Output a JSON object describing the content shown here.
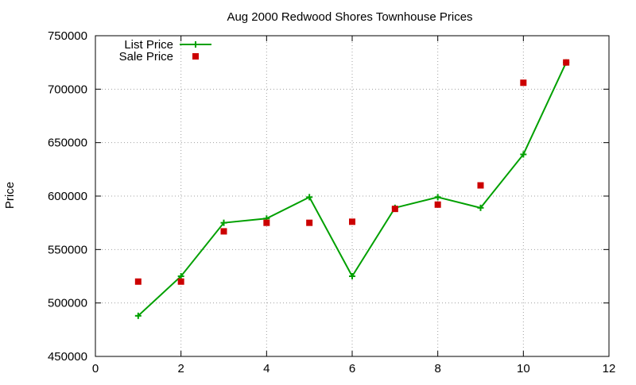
{
  "chart_data": {
    "type": "line",
    "title": "Aug 2000 Redwood Shores Townhouse Prices",
    "xlabel": "",
    "ylabel": "Price",
    "xlim": [
      0,
      12
    ],
    "ylim": [
      450000,
      750000
    ],
    "x_ticks": [
      0,
      2,
      4,
      6,
      8,
      10,
      12
    ],
    "y_ticks": [
      450000,
      500000,
      550000,
      600000,
      650000,
      700000,
      750000
    ],
    "grid": true,
    "legend_position": "top-left",
    "series": [
      {
        "name": "List Price",
        "style": "line-with-plus-markers",
        "color": "#00a000",
        "x": [
          1,
          2,
          3,
          4,
          5,
          6,
          7,
          8,
          9,
          10,
          11
        ],
        "values": [
          488000,
          525000,
          575000,
          579000,
          599000,
          525000,
          589000,
          599000,
          589000,
          639000,
          725000
        ]
      },
      {
        "name": "Sale Price",
        "style": "square-markers",
        "color": "#cc0000",
        "x": [
          1,
          2,
          3,
          4,
          5,
          6,
          7,
          8,
          9,
          10,
          11
        ],
        "values": [
          520000,
          520000,
          567000,
          575000,
          575000,
          576000,
          588000,
          592000,
          610000,
          706000,
          725000
        ]
      }
    ]
  }
}
